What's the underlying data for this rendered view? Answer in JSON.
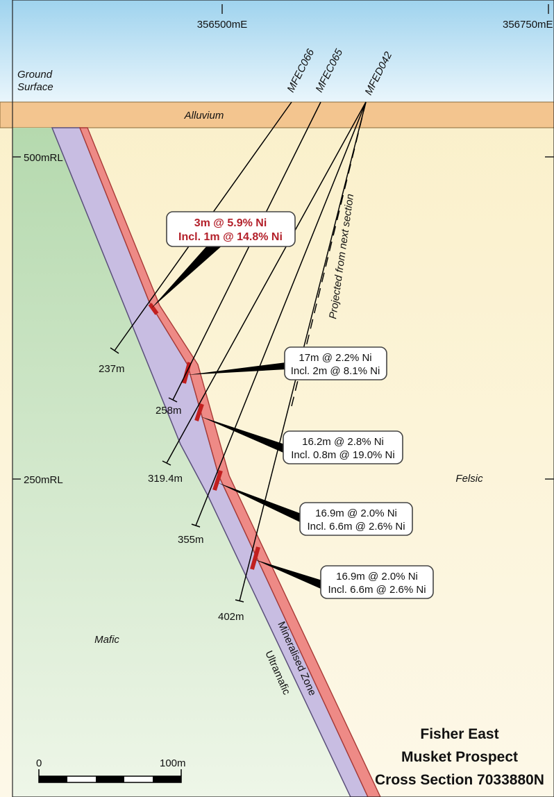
{
  "eastings": [
    "356500mE",
    "356750mE"
  ],
  "levels": [
    "500mRL",
    "250mRL"
  ],
  "ground_surface": [
    "Ground",
    "Surface"
  ],
  "units": {
    "alluvium": "Alluvium",
    "felsic": "Felsic",
    "mafic": "Mafic",
    "ultramafic": "Ultramafic",
    "mineralised_zone": "Mineralised Zone"
  },
  "holes": [
    {
      "id": "MFEC066",
      "depth": "237m"
    },
    {
      "id": "MFEC065",
      "depth": "258m"
    },
    {
      "id": "MFED042",
      "depths": [
        "319.4m",
        "355m",
        "402m"
      ]
    }
  ],
  "projected_note": "Projected from next section",
  "intercepts": [
    {
      "line1": "3m @ 5.9% Ni",
      "line2": "Incl. 1m @ 14.8% Ni",
      "highlight": true
    },
    {
      "line1": "17m @ 2.2% Ni",
      "line2": "Incl. 2m @ 8.1% Ni"
    },
    {
      "line1": "16.2m @ 2.8% Ni",
      "line2": "Incl. 0.8m @ 19.0% Ni"
    },
    {
      "line1": "16.9m @ 2.0% Ni",
      "line2": "Incl. 6.6m @ 2.6% Ni"
    },
    {
      "line1": "16.9m @ 2.0% Ni",
      "line2": "Incl. 6.6m @ 2.6% Ni"
    }
  ],
  "scale_bar": {
    "start": "0",
    "end": "100m"
  },
  "title": [
    "Fisher East",
    "Musket Prospect",
    "Cross Section 7033880N"
  ],
  "colors": {
    "sky": "#bfe3f4",
    "alluvium": "#f3c58f",
    "felsic": "#fbefc4",
    "mafic": "#c2e0bc",
    "ultramafic": "#c8bde2",
    "mineralised": "#ee8a86",
    "highlight_text": "#b3202a"
  }
}
